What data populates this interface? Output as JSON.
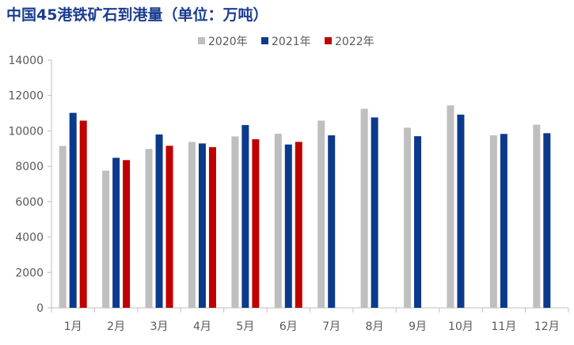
{
  "chart_data": {
    "type": "bar",
    "title": "中国45港铁矿石到港量（单位：万吨）",
    "xlabel": "",
    "ylabel": "",
    "categories": [
      "1月",
      "2月",
      "3月",
      "4月",
      "5月",
      "6月",
      "7月",
      "8月",
      "9月",
      "10月",
      "11月",
      "12月"
    ],
    "series": [
      {
        "name": "2020年",
        "color": "#bfbfbf",
        "values": [
          9150,
          7750,
          8980,
          9380,
          9690,
          9840,
          10580,
          11250,
          10180,
          11440,
          9750,
          10350
        ]
      },
      {
        "name": "2021年",
        "color": "#0b3a8c",
        "values": [
          11020,
          8480,
          9800,
          9290,
          10330,
          9230,
          9750,
          10760,
          9700,
          10920,
          9830,
          9870
        ]
      },
      {
        "name": "2022年",
        "color": "#c00000",
        "values": [
          10580,
          8350,
          9160,
          9080,
          9530,
          9380,
          null,
          null,
          null,
          null,
          null,
          null
        ]
      }
    ],
    "ylim": [
      0,
      14000
    ],
    "yticks": [
      0,
      2000,
      4000,
      6000,
      8000,
      10000,
      12000,
      14000
    ],
    "grid": false,
    "legend_position": "top"
  }
}
